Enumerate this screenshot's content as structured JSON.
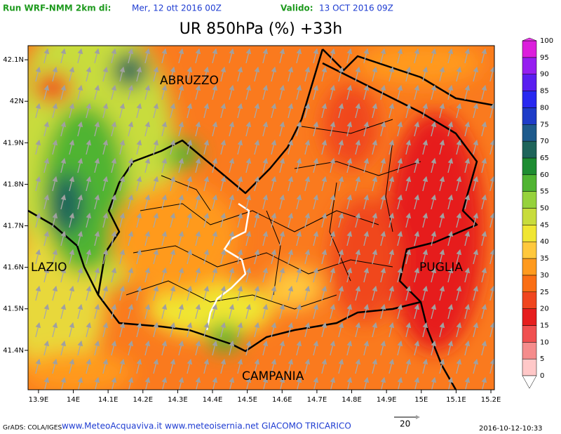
{
  "header": {
    "run_label": "Run WRF-NMM 2km di:",
    "run_date": "Mer, 12 ott 2016 00Z",
    "valid_label": "Valido:",
    "valid_date": "13 OCT 2016 09Z"
  },
  "title": "UR 850hPa (%) +33h",
  "axes": {
    "xlim": [
      13.87,
      15.21
    ],
    "ylim": [
      41.305,
      42.134
    ],
    "xticks": [
      {
        "value": 13.9,
        "label": "13.9E"
      },
      {
        "value": 14.0,
        "label": "14E"
      },
      {
        "value": 14.1,
        "label": "14.1E"
      },
      {
        "value": 14.2,
        "label": "14.2E"
      },
      {
        "value": 14.3,
        "label": "14.3E"
      },
      {
        "value": 14.4,
        "label": "14.4E"
      },
      {
        "value": 14.5,
        "label": "14.5E"
      },
      {
        "value": 14.6,
        "label": "14.6E"
      },
      {
        "value": 14.7,
        "label": "14.7E"
      },
      {
        "value": 14.8,
        "label": "14.8E"
      },
      {
        "value": 14.9,
        "label": "14.9E"
      },
      {
        "value": 15.0,
        "label": "15E"
      },
      {
        "value": 15.1,
        "label": "15.1E"
      },
      {
        "value": 15.2,
        "label": "15.2E"
      }
    ],
    "yticks": [
      {
        "value": 42.1,
        "label": "42.1N"
      },
      {
        "value": 42.0,
        "label": "42N"
      },
      {
        "value": 41.9,
        "label": "41.9N"
      },
      {
        "value": 41.8,
        "label": "41.8N"
      },
      {
        "value": 41.7,
        "label": "41.7N"
      },
      {
        "value": 41.6,
        "label": "41.6N"
      },
      {
        "value": 41.5,
        "label": "41.5N"
      },
      {
        "value": 41.4,
        "label": "41.4N"
      }
    ]
  },
  "regions": [
    "ABRUZZO",
    "LAZIO",
    "PUGLIA",
    "CAMPANIA"
  ],
  "colorbar": {
    "levels": [
      0,
      5,
      10,
      15,
      20,
      25,
      30,
      35,
      40,
      45,
      50,
      55,
      60,
      65,
      70,
      75,
      80,
      85,
      90,
      95,
      100
    ],
    "colors": [
      "#ffc8c8",
      "#f58c8c",
      "#f05050",
      "#e61e1e",
      "#f0461e",
      "#fa6e14",
      "#ff9a1e",
      "#ffc83c",
      "#f0e632",
      "#c8dc3c",
      "#96d23c",
      "#50b432",
      "#1e8c32",
      "#1e645a",
      "#1e5a8c",
      "#1e3cc8",
      "#2828f0",
      "#5a1ef0",
      "#961ef0",
      "#dc1edc"
    ],
    "under_color": "#ffffff",
    "over_color": "#f03cf0"
  },
  "footer": {
    "credit": "GrADS: COLA/IGES",
    "sites": "www.MeteoAcquaviva.it www.meteoisernia.net GIACOMO TRICARICO",
    "vector_scale": "20",
    "timestamp": "2016-10-12-10:33"
  }
}
